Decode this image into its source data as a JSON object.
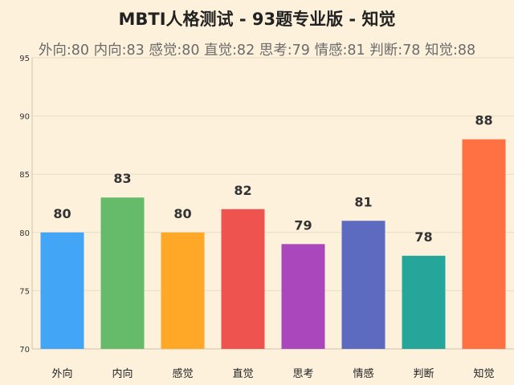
{
  "title": "MBTI人格测试 - 93题专业版 - 知觉",
  "subtitle": "外向:80 内向:83 感觉:80 直觉:82 思考:79 情感:81 判断:78 知觉:88",
  "chart_data": {
    "type": "bar",
    "title": "MBTI人格测试 - 93题专业版 - 知觉",
    "subtitle": "外向:80 内向:83 感觉:80 直觉:82 思考:79 情感:81 判断:78 知觉:88",
    "categories": [
      "外向",
      "内向",
      "感觉",
      "直觉",
      "思考",
      "情感",
      "判断",
      "知觉"
    ],
    "values": [
      80,
      83,
      80,
      82,
      79,
      81,
      78,
      88
    ],
    "colors": [
      "#42a5f5",
      "#66bb6a",
      "#ffa726",
      "#ef5350",
      "#ab47bc",
      "#5c6bc0",
      "#26a69a",
      "#ff7043"
    ],
    "ylim": [
      70,
      95
    ],
    "yticks": [
      70,
      75,
      80,
      85,
      90,
      95
    ],
    "xlabel": "",
    "ylabel": "",
    "grid": true,
    "data_labels": true,
    "background": "#fdf1dc"
  }
}
